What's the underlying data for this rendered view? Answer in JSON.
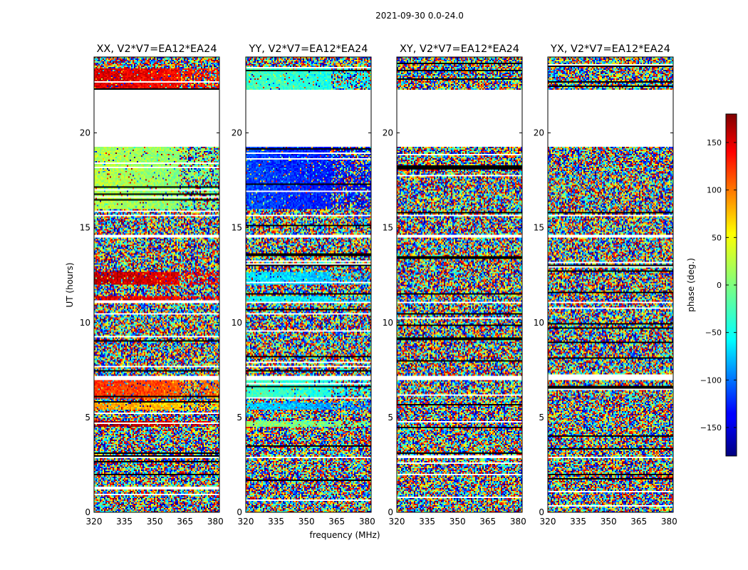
{
  "figure": {
    "suptitle": "2021-09-30 0.0-24.0"
  },
  "chart_data": [
    {
      "type": "heatmap",
      "title": "XX, V2*V7=EA12*EA24",
      "xlabel": "",
      "ylabel": "UT (hours)",
      "xlim": [
        320,
        382
      ],
      "ylim": [
        0,
        24
      ],
      "xticks": [
        320,
        335,
        350,
        365,
        380
      ],
      "yticks": [
        0,
        5,
        10,
        15,
        20
      ],
      "z_description": "baseline phase in degrees",
      "coherent_bands": [
        {
          "t0": 22.3,
          "t1": 23.4,
          "phase": 150
        },
        {
          "t0": 16.0,
          "t1": 19.3,
          "phase": 20
        },
        {
          "t0": 12.0,
          "t1": 12.7,
          "phase": 160
        },
        {
          "t0": 11.0,
          "t1": 11.4,
          "phase": 150
        },
        {
          "t0": 6.0,
          "t1": 7.0,
          "phase": 120
        },
        {
          "t0": 5.4,
          "t1": 5.8,
          "phase": 80
        },
        {
          "t0": 4.5,
          "t1": 4.8,
          "phase": 170
        }
      ]
    },
    {
      "type": "heatmap",
      "title": "YY, V2*V7=EA12*EA24",
      "xlabel": "frequency (MHz)",
      "ylabel": "",
      "xlim": [
        320,
        382
      ],
      "ylim": [
        0,
        24
      ],
      "xticks": [
        320,
        335,
        350,
        365,
        380
      ],
      "yticks": [
        0,
        5,
        10,
        15,
        20
      ],
      "z_description": "baseline phase in degrees",
      "coherent_bands": [
        {
          "t0": 22.3,
          "t1": 23.4,
          "phase": -20
        },
        {
          "t0": 16.0,
          "t1": 19.3,
          "phase": -110
        },
        {
          "t0": 12.0,
          "t1": 12.7,
          "phase": -50
        },
        {
          "t0": 11.0,
          "t1": 11.4,
          "phase": -40
        },
        {
          "t0": 6.0,
          "t1": 7.0,
          "phase": -20
        },
        {
          "t0": 5.4,
          "t1": 5.8,
          "phase": -60
        },
        {
          "t0": 4.5,
          "t1": 4.8,
          "phase": 10
        }
      ]
    },
    {
      "type": "heatmap",
      "title": "XY, V2*V7=EA12*EA24",
      "xlabel": "",
      "ylabel": "",
      "xlim": [
        320,
        382
      ],
      "ylim": [
        0,
        24
      ],
      "xticks": [
        320,
        335,
        350,
        365,
        380
      ],
      "yticks": [
        0,
        5,
        10,
        15,
        20
      ],
      "z_description": "baseline phase in degrees",
      "coherent_bands": []
    },
    {
      "type": "heatmap",
      "title": "YX, V2*V7=EA12*EA24",
      "xlabel": "",
      "ylabel": "",
      "xlim": [
        320,
        382
      ],
      "ylim": [
        0,
        24
      ],
      "xticks": [
        320,
        335,
        350,
        365,
        380
      ],
      "yticks": [
        0,
        5,
        10,
        15,
        20
      ],
      "z_description": "baseline phase in degrees",
      "coherent_bands": []
    }
  ],
  "colorbar": {
    "label": "phase (deg.)",
    "range": [
      -180,
      180
    ],
    "ticks": [
      150,
      100,
      50,
      0,
      -50,
      -100,
      -150
    ],
    "tick_labels": [
      "150",
      "100",
      "50",
      "0",
      "−50",
      "−100",
      "−150"
    ],
    "colormap": "jet"
  },
  "data_gaps_hours": [
    [
      19.3,
      22.3
    ],
    [
      11.0,
      11.1
    ],
    [
      7.0,
      7.2
    ],
    [
      15.6,
      15.7
    ],
    [
      14.5,
      14.6
    ],
    [
      2.85,
      2.95
    ]
  ]
}
